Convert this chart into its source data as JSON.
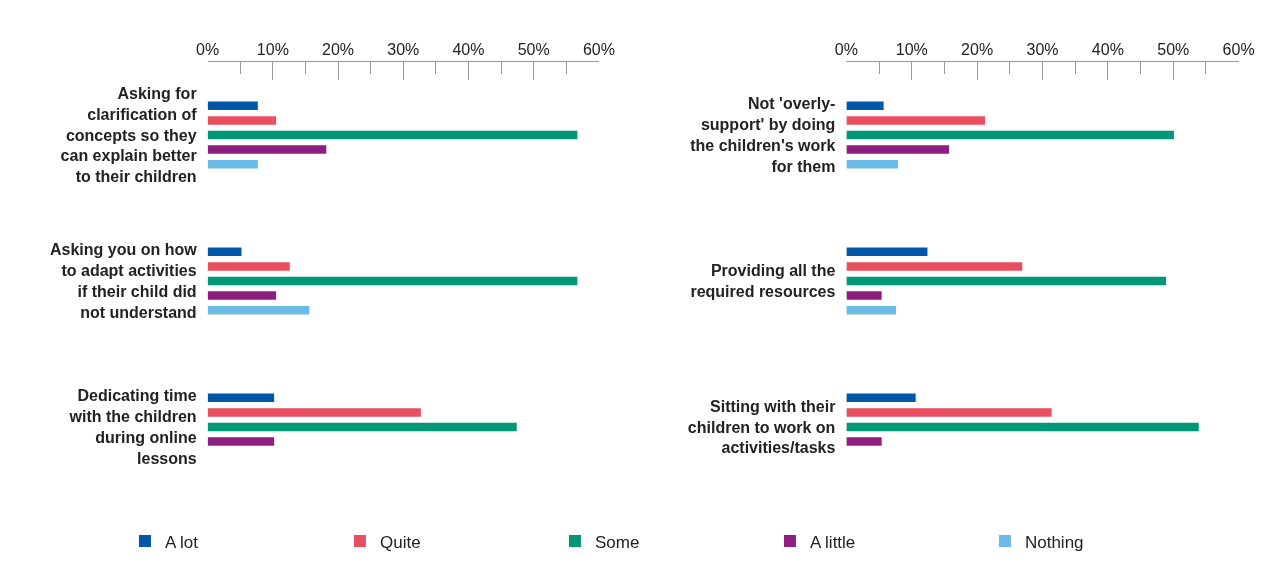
{
  "chart_data": [
    {
      "type": "bar",
      "orientation": "horizontal",
      "legend": "bottom",
      "categories": [
        "Asking for clarification of concepts so they can explain better to their children",
        "Asking you on how to adapt activities if their child did not understand",
        "Dedicating time with the children during online lessons"
      ],
      "series": [
        {
          "name": "A lot",
          "color": "#0057a8",
          "values": [
            7.7,
            5.2,
            10.2
          ]
        },
        {
          "name": "Quite",
          "color": "#e94e61",
          "values": [
            10.5,
            12.6,
            32.7
          ]
        },
        {
          "name": "Some",
          "color": "#009877",
          "values": [
            56.7,
            56.7,
            47.4
          ]
        },
        {
          "name": "A little",
          "color": "#8e1f80",
          "values": [
            18.2,
            10.5,
            10.2
          ]
        },
        {
          "name": "Nothing",
          "color": "#6bbbe8",
          "values": [
            7.7,
            15.6,
            0
          ]
        }
      ],
      "xlim": [
        0,
        60
      ],
      "xticks": [
        {
          "value": 0,
          "label": "0%"
        },
        {
          "value": 5,
          "label": null
        },
        {
          "value": 10,
          "label": "10%"
        },
        {
          "value": 15,
          "label": null
        },
        {
          "value": 20,
          "label": "20%"
        },
        {
          "value": 25,
          "label": null
        },
        {
          "value": 30,
          "label": "30%"
        },
        {
          "value": 35,
          "label": null
        },
        {
          "value": 40,
          "label": "40%"
        },
        {
          "value": 45,
          "label": null
        },
        {
          "value": 50,
          "label": "50%"
        },
        {
          "value": 55,
          "label": null
        },
        {
          "value": 60,
          "label": "60%"
        }
      ]
    },
    {
      "type": "bar",
      "orientation": "horizontal",
      "categories": [
        "Not 'overly-support' by doing the children's work for them",
        "Providing all the required resources",
        "Sitting with their children to work on activities/tasks"
      ],
      "series": [
        {
          "color": "#0057a8",
          "values": [
            5.7,
            12.4,
            10.6
          ]
        },
        {
          "color": "#e94e61",
          "values": [
            21.2,
            26.9,
            31.4
          ]
        },
        {
          "color": "#009877",
          "values": [
            50.1,
            48.9,
            53.9
          ]
        },
        {
          "color": "#8e1f80",
          "values": [
            15.7,
            5.4,
            5.4
          ]
        },
        {
          "color": "#6bbbe8",
          "values": [
            7.9,
            7.6,
            0
          ]
        }
      ],
      "xlim": [
        0,
        60
      ],
      "xticks": [
        {
          "value": 0,
          "label": "0%"
        },
        {
          "value": 5,
          "label": null
        },
        {
          "value": 10,
          "label": "10%"
        },
        {
          "value": 15,
          "label": null
        },
        {
          "value": 20,
          "label": "20%"
        },
        {
          "value": 25,
          "label": null
        },
        {
          "value": 30,
          "label": "30%"
        },
        {
          "value": 35,
          "label": null
        },
        {
          "value": 40,
          "label": "40%"
        },
        {
          "value": 45,
          "label": null
        },
        {
          "value": 50,
          "label": "50%"
        },
        {
          "value": 55,
          "label": null
        },
        {
          "value": 60,
          "label": "60%"
        }
      ]
    }
  ]
}
